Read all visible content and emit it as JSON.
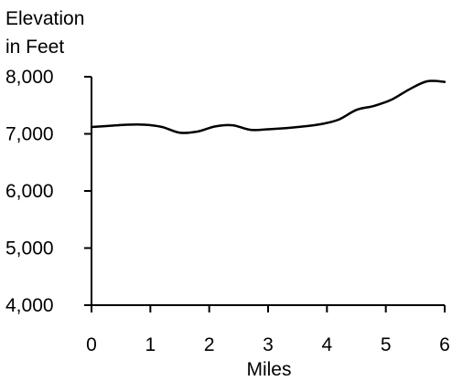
{
  "chart_data": {
    "type": "line",
    "ylabel_lines": [
      "Elevation",
      "in Feet"
    ],
    "xlabel": "Miles",
    "ylim": [
      4000,
      8000
    ],
    "xlim": [
      0,
      6
    ],
    "grid": false,
    "y_ticks": [
      4000,
      5000,
      6000,
      7000,
      8000
    ],
    "y_tick_labels": [
      "4,000",
      "5,000",
      "6,000",
      "7,000",
      "8,000"
    ],
    "x_ticks": [
      0,
      1,
      2,
      3,
      4,
      5,
      6
    ],
    "x_tick_labels": [
      "0",
      "1",
      "2",
      "3",
      "4",
      "5",
      "6"
    ],
    "series": [
      {
        "x": [
          0,
          0.3,
          0.6,
          0.9,
          1.2,
          1.5,
          1.8,
          2.1,
          2.4,
          2.7,
          3.0,
          3.3,
          3.6,
          3.9,
          4.2,
          4.5,
          4.8,
          5.1,
          5.4,
          5.7,
          6.0
        ],
        "y": [
          7120,
          7140,
          7160,
          7160,
          7120,
          7020,
          7040,
          7130,
          7150,
          7070,
          7080,
          7100,
          7130,
          7170,
          7250,
          7420,
          7490,
          7600,
          7780,
          7920,
          7910
        ]
      }
    ]
  }
}
